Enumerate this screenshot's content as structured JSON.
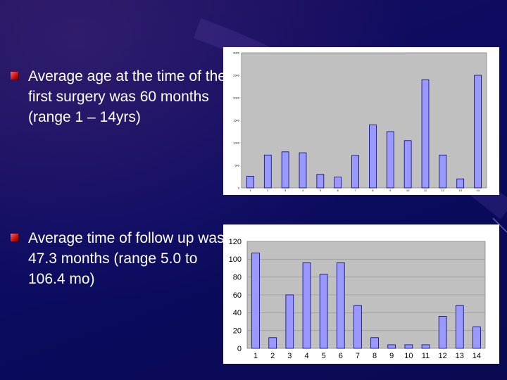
{
  "bullets": [
    {
      "text": "Average age at the time of the first surgery was 60 months (range 1 – 14yrs)"
    },
    {
      "text": "Average time of follow up was 47.3 months (range 5.0 to 106.4 mo)"
    }
  ],
  "colors": {
    "background": "#0a0a5a",
    "plot_area": "#c0c0c0",
    "bar_fill": "#9999ff",
    "bar_stroke": "#000080",
    "bullet_mark": "#cc1111",
    "text": "#ffffff"
  },
  "chart_data": [
    {
      "type": "bar",
      "categories": [
        "1",
        "2",
        "3",
        "4",
        "5",
        "6",
        "7",
        "8",
        "9",
        "10",
        "11",
        "12",
        "13",
        "14"
      ],
      "values": [
        260,
        730,
        800,
        780,
        300,
        240,
        720,
        1400,
        1250,
        1050,
        2400,
        730,
        200,
        2500
      ],
      "ylim": [
        0,
        3000
      ],
      "yticks": [
        "0",
        "500",
        "1000",
        "1500",
        "2000",
        "2500",
        "3000"
      ],
      "grid": false,
      "legend": "none"
    },
    {
      "type": "bar",
      "categories": [
        "1",
        "2",
        "3",
        "4",
        "5",
        "6",
        "7",
        "8",
        "9",
        "10",
        "11",
        "12",
        "13",
        "14"
      ],
      "values": [
        107,
        12,
        60,
        96,
        83,
        96,
        48,
        12,
        4,
        4,
        4,
        36,
        48,
        24
      ],
      "ylim": [
        0,
        120
      ],
      "yticks": [
        "0",
        "20",
        "40",
        "60",
        "80",
        "100",
        "120"
      ],
      "grid": true,
      "legend": "none"
    }
  ]
}
